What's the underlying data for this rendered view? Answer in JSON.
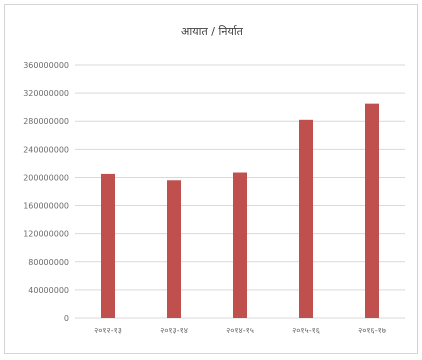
{
  "chart_data": {
    "type": "bar",
    "title": "आयात / निर्यात",
    "categories": [
      "२०१२-१३",
      "२०१३-१४",
      "२०१४-१५",
      "२०१५-१६",
      "२०१६-१७"
    ],
    "values": [
      205000000,
      196000000,
      207000000,
      282000000,
      305000000
    ],
    "ylim": [
      0,
      360000000
    ],
    "yticks": [
      0,
      40000000,
      80000000,
      120000000,
      160000000,
      200000000,
      240000000,
      280000000,
      320000000,
      360000000
    ],
    "ytick_labels": [
      "0",
      "40000000",
      "80000000",
      "120000000",
      "160000000",
      "200000000",
      "240000000",
      "280000000",
      "320000000",
      "360000000"
    ],
    "grid": true,
    "bar_color": "#c0504d",
    "grid_color": "#d9d9d9"
  }
}
